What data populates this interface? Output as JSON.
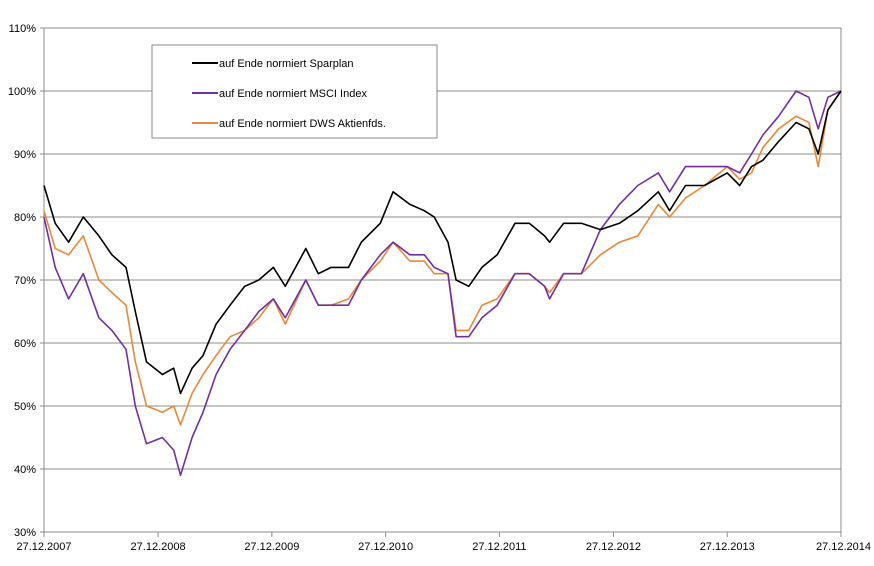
{
  "chart_data": {
    "type": "line",
    "title": "",
    "xlabel": "",
    "ylabel": "",
    "ylim": [
      30,
      110
    ],
    "ytick_values": [
      30,
      40,
      50,
      60,
      70,
      80,
      90,
      100,
      110
    ],
    "ytick_labels": [
      "30%",
      "40%",
      "50%",
      "60%",
      "70%",
      "80%",
      "90%",
      "100%",
      "110%"
    ],
    "x_range": [
      "2007-12-27",
      "2014-12-27"
    ],
    "xtick_values": [
      "2007-12-27",
      "2008-12-27",
      "2009-12-27",
      "2010-12-27",
      "2011-12-27",
      "2012-12-27",
      "2013-12-27",
      "2014-12-27"
    ],
    "xtick_labels": [
      "27.12.2007",
      "27.12.2008",
      "27.12.2009",
      "27.12.2010",
      "27.12.2011",
      "27.12.2012",
      "27.12.2013",
      "27.12.2014"
    ],
    "grid": "horizontal",
    "legend_position": "top-left",
    "series": [
      {
        "name": "auf Ende normiert Sparplan",
        "color": "#000000",
        "x": [
          "2007-12-27",
          "2008-02-01",
          "2008-03-15",
          "2008-05-01",
          "2008-06-20",
          "2008-08-01",
          "2008-09-15",
          "2008-10-15",
          "2008-11-20",
          "2009-01-10",
          "2009-02-15",
          "2009-03-09",
          "2009-04-15",
          "2009-05-20",
          "2009-07-01",
          "2009-08-15",
          "2009-10-01",
          "2009-11-15",
          "2010-01-01",
          "2010-02-08",
          "2010-04-15",
          "2010-05-25",
          "2010-07-05",
          "2010-08-30",
          "2010-10-10",
          "2010-12-10",
          "2011-01-20",
          "2011-03-15",
          "2011-04-30",
          "2011-06-01",
          "2011-07-15",
          "2011-08-10",
          "2011-09-20",
          "2011-11-01",
          "2011-12-20",
          "2012-02-15",
          "2012-04-01",
          "2012-05-20",
          "2012-06-05",
          "2012-07-20",
          "2012-09-15",
          "2012-11-15",
          "2013-01-15",
          "2013-03-15",
          "2013-05-20",
          "2013-06-25",
          "2013-08-15",
          "2013-10-15",
          "2013-12-27",
          "2014-02-05",
          "2014-03-15",
          "2014-04-20",
          "2014-06-10",
          "2014-08-05",
          "2014-09-15",
          "2014-10-15",
          "2014-11-15",
          "2014-12-27"
        ],
        "values": [
          85,
          79,
          76,
          80,
          77,
          74,
          72,
          65,
          57,
          55,
          56,
          52,
          56,
          58,
          63,
          66,
          69,
          70,
          72,
          69,
          75,
          71,
          72,
          72,
          76,
          79,
          84,
          82,
          81,
          80,
          76,
          70,
          69,
          72,
          74,
          79,
          79,
          77,
          76,
          79,
          79,
          78,
          79,
          81,
          84,
          81,
          85,
          85,
          87,
          85,
          88,
          89,
          92,
          95,
          94,
          90,
          97,
          100
        ]
      },
      {
        "name": "auf Ende normiert MSCI Index",
        "color": "#7030a0",
        "x": [
          "2007-12-27",
          "2008-02-01",
          "2008-03-15",
          "2008-05-01",
          "2008-06-20",
          "2008-08-01",
          "2008-09-15",
          "2008-10-15",
          "2008-11-20",
          "2009-01-10",
          "2009-02-15",
          "2009-03-09",
          "2009-04-15",
          "2009-05-20",
          "2009-07-01",
          "2009-08-15",
          "2009-10-01",
          "2009-11-15",
          "2010-01-01",
          "2010-02-08",
          "2010-04-15",
          "2010-05-25",
          "2010-07-05",
          "2010-08-30",
          "2010-10-10",
          "2010-12-10",
          "2011-01-20",
          "2011-03-15",
          "2011-04-30",
          "2011-06-01",
          "2011-07-15",
          "2011-08-10",
          "2011-09-20",
          "2011-11-01",
          "2011-12-20",
          "2012-02-15",
          "2012-04-01",
          "2012-05-20",
          "2012-06-05",
          "2012-07-20",
          "2012-09-15",
          "2012-11-15",
          "2013-01-15",
          "2013-03-15",
          "2013-05-20",
          "2013-06-25",
          "2013-08-15",
          "2013-10-15",
          "2013-12-27",
          "2014-02-05",
          "2014-03-15",
          "2014-04-20",
          "2014-06-10",
          "2014-08-05",
          "2014-09-15",
          "2014-10-15",
          "2014-11-15",
          "2014-12-27"
        ],
        "values": [
          80,
          72,
          67,
          71,
          64,
          62,
          59,
          50,
          44,
          45,
          43,
          39,
          45,
          49,
          55,
          59,
          62,
          65,
          67,
          64,
          70,
          66,
          66,
          66,
          70,
          74,
          76,
          74,
          74,
          72,
          71,
          61,
          61,
          64,
          66,
          71,
          71,
          69,
          67,
          71,
          71,
          78,
          82,
          85,
          87,
          84,
          88,
          88,
          88,
          87,
          90,
          93,
          96,
          100,
          99,
          94,
          99,
          100
        ]
      },
      {
        "name": "auf Ende normiert DWS Aktienfds.",
        "color": "#e8883a",
        "x": [
          "2007-12-27",
          "2008-02-01",
          "2008-03-15",
          "2008-05-01",
          "2008-06-20",
          "2008-08-01",
          "2008-09-15",
          "2008-10-15",
          "2008-11-20",
          "2009-01-10",
          "2009-02-15",
          "2009-03-09",
          "2009-04-15",
          "2009-05-20",
          "2009-07-01",
          "2009-08-15",
          "2009-10-01",
          "2009-11-15",
          "2010-01-01",
          "2010-02-08",
          "2010-04-15",
          "2010-05-25",
          "2010-07-05",
          "2010-08-30",
          "2010-10-10",
          "2010-12-10",
          "2011-01-20",
          "2011-03-15",
          "2011-04-30",
          "2011-06-01",
          "2011-07-15",
          "2011-08-10",
          "2011-09-20",
          "2011-11-01",
          "2011-12-20",
          "2012-02-15",
          "2012-04-01",
          "2012-05-20",
          "2012-06-05",
          "2012-07-20",
          "2012-09-15",
          "2012-11-15",
          "2013-01-15",
          "2013-03-15",
          "2013-05-20",
          "2013-06-25",
          "2013-08-15",
          "2013-10-15",
          "2013-12-27",
          "2014-02-05",
          "2014-03-15",
          "2014-04-20",
          "2014-06-10",
          "2014-08-05",
          "2014-09-15",
          "2014-10-15",
          "2014-11-15",
          "2014-12-27"
        ],
        "values": [
          81,
          75,
          74,
          77,
          70,
          68,
          66,
          57,
          50,
          49,
          50,
          47,
          52,
          55,
          58,
          61,
          62,
          64,
          67,
          63,
          70,
          66,
          66,
          67,
          70,
          73,
          76,
          73,
          73,
          71,
          71,
          62,
          62,
          66,
          67,
          71,
          71,
          69,
          68,
          71,
          71,
          74,
          76,
          77,
          82,
          80,
          83,
          85,
          88,
          86,
          87,
          91,
          94,
          96,
          95,
          88,
          97,
          100
        ]
      }
    ]
  }
}
